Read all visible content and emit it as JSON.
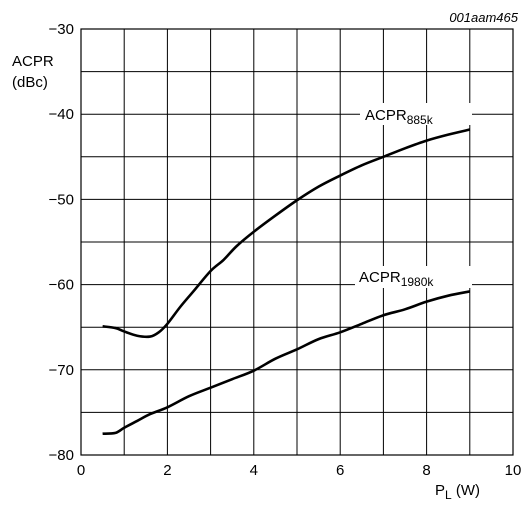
{
  "chart_data": {
    "type": "line",
    "figure_id": "001aam465",
    "ylabel_line1": "ACPR",
    "ylabel_line2": "(dBc)",
    "xlabel_main": "P",
    "xlabel_sub": "L",
    "xlabel_unit": " (W)",
    "xlim": [
      0,
      10
    ],
    "ylim": [
      -80,
      -30
    ],
    "x_ticks": [
      0,
      2,
      4,
      6,
      8,
      10
    ],
    "x_tick_labels": [
      "0",
      "2",
      "4",
      "6",
      "8",
      "10"
    ],
    "y_ticks": [
      -80,
      -70,
      -60,
      -50,
      -40,
      -30
    ],
    "y_tick_labels": [
      "−80",
      "−70",
      "−60",
      "−50",
      "−40",
      "−30"
    ],
    "x_grid_step": 1,
    "y_grid_step": 5,
    "grid": true,
    "series": [
      {
        "name_main": "ACPR",
        "name_sub": "885k",
        "x": [
          0.5,
          0.8,
          1.0,
          1.3,
          1.6,
          1.8,
          2.0,
          2.3,
          2.6,
          3.0,
          3.3,
          3.6,
          4.0,
          4.5,
          5.0,
          5.5,
          6.0,
          6.5,
          7.0,
          7.5,
          8.0,
          8.5,
          9.0
        ],
        "y": [
          -64.9,
          -65.1,
          -65.5,
          -66.0,
          -66.1,
          -65.6,
          -64.6,
          -62.6,
          -60.8,
          -58.4,
          -57.1,
          -55.5,
          -53.8,
          -51.9,
          -50.1,
          -48.5,
          -47.2,
          -46.0,
          -45.0,
          -44.0,
          -43.1,
          -42.4,
          -41.8
        ]
      },
      {
        "name_main": "ACPR",
        "name_sub": "1980k",
        "x": [
          0.5,
          0.8,
          1.0,
          1.3,
          1.6,
          2.0,
          2.5,
          3.0,
          3.5,
          4.0,
          4.5,
          5.0,
          5.5,
          6.0,
          6.5,
          7.0,
          7.5,
          8.0,
          8.5,
          9.0
        ],
        "y": [
          -77.5,
          -77.4,
          -76.8,
          -76.0,
          -75.2,
          -74.4,
          -73.1,
          -72.1,
          -71.1,
          -70.1,
          -68.7,
          -67.6,
          -66.4,
          -65.6,
          -64.6,
          -63.6,
          -62.9,
          -62.0,
          -61.3,
          -60.8
        ]
      }
    ]
  }
}
